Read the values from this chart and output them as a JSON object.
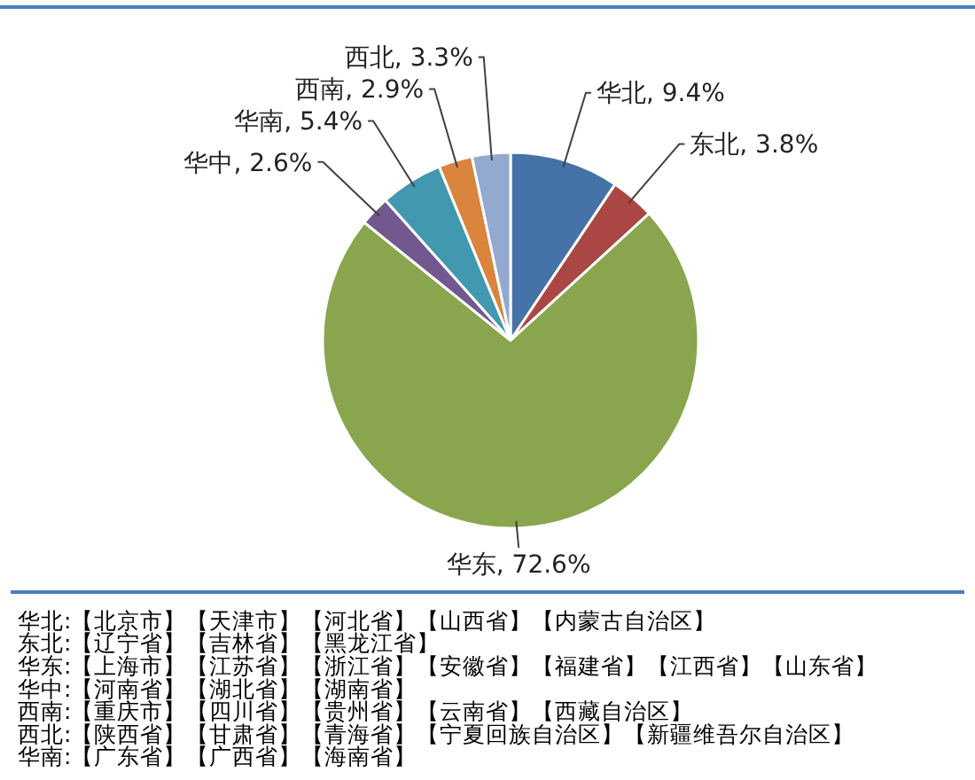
{
  "chart_data": {
    "type": "pie",
    "categories": [
      "华北",
      "东北",
      "华东",
      "华中",
      "华南",
      "西南",
      "西北"
    ],
    "values": [
      9.4,
      3.8,
      72.6,
      2.6,
      5.4,
      2.9,
      3.3
    ],
    "colors": [
      "#4572a7",
      "#aa4643",
      "#89a54e",
      "#71588f",
      "#4198af",
      "#db843d",
      "#93a9cf"
    ],
    "value_labels": [
      ", 9.4%",
      ", 3.8%",
      ", 72.6%",
      ", 2.6%",
      ", 5.4%",
      ", 2.9%",
      ", 3.3%"
    ],
    "annotations": [
      "华北:【北京市】【天津市】【河北省】【山西省】【内蒙古自治区】",
      "东北:【辽宁省】【吉林省】【黑龙江省】",
      "华东:【上海市】【江苏省】【浙江省】【安徽省】【福建省】【江西省】【山东省】",
      "华中:【河南省】【湖北省】【湖南省】",
      "西南:【重庆市】【四川省】【贵州省】【云南省】【西藏自治区】",
      "西北:【陕西省】【甘肃省】【青海省】【宁夏回族自治区】【新疆维吾尔自治区】",
      "华南:【广东省】【广西省】【海南省】"
    ]
  }
}
